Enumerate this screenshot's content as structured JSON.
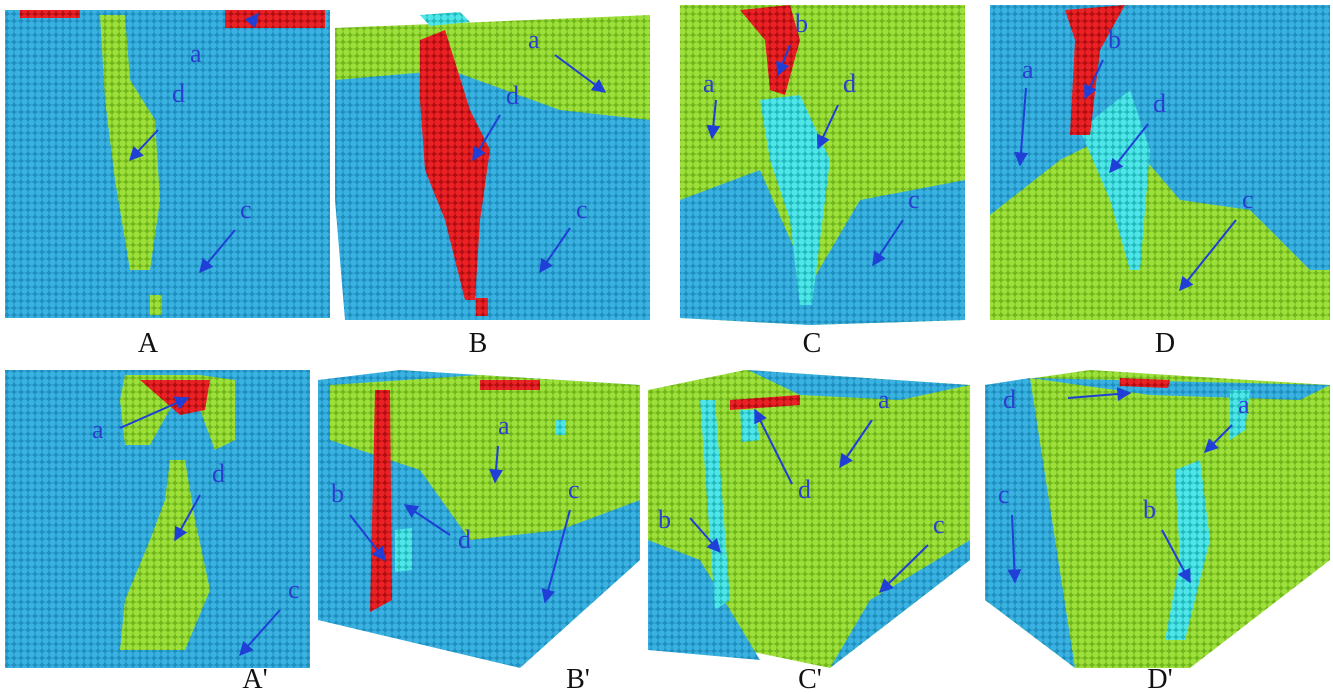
{
  "panels": [
    {
      "label": "A",
      "annotations": [
        "a",
        "d",
        "c"
      ]
    },
    {
      "label": "B",
      "annotations": [
        "a",
        "d",
        "c"
      ]
    },
    {
      "label": "C",
      "annotations": [
        "b",
        "a",
        "d",
        "c"
      ]
    },
    {
      "label": "D",
      "annotations": [
        "b",
        "a",
        "d",
        "c"
      ]
    },
    {
      "label": "A'",
      "annotations": [
        "a",
        "d",
        "c"
      ]
    },
    {
      "label": "B'",
      "annotations": [
        "a",
        "b",
        "d",
        "c"
      ]
    },
    {
      "label": "C'",
      "annotations": [
        "a",
        "b",
        "d",
        "c"
      ]
    },
    {
      "label": "D'",
      "annotations": [
        "d",
        "a",
        "c",
        "b"
      ]
    }
  ]
}
